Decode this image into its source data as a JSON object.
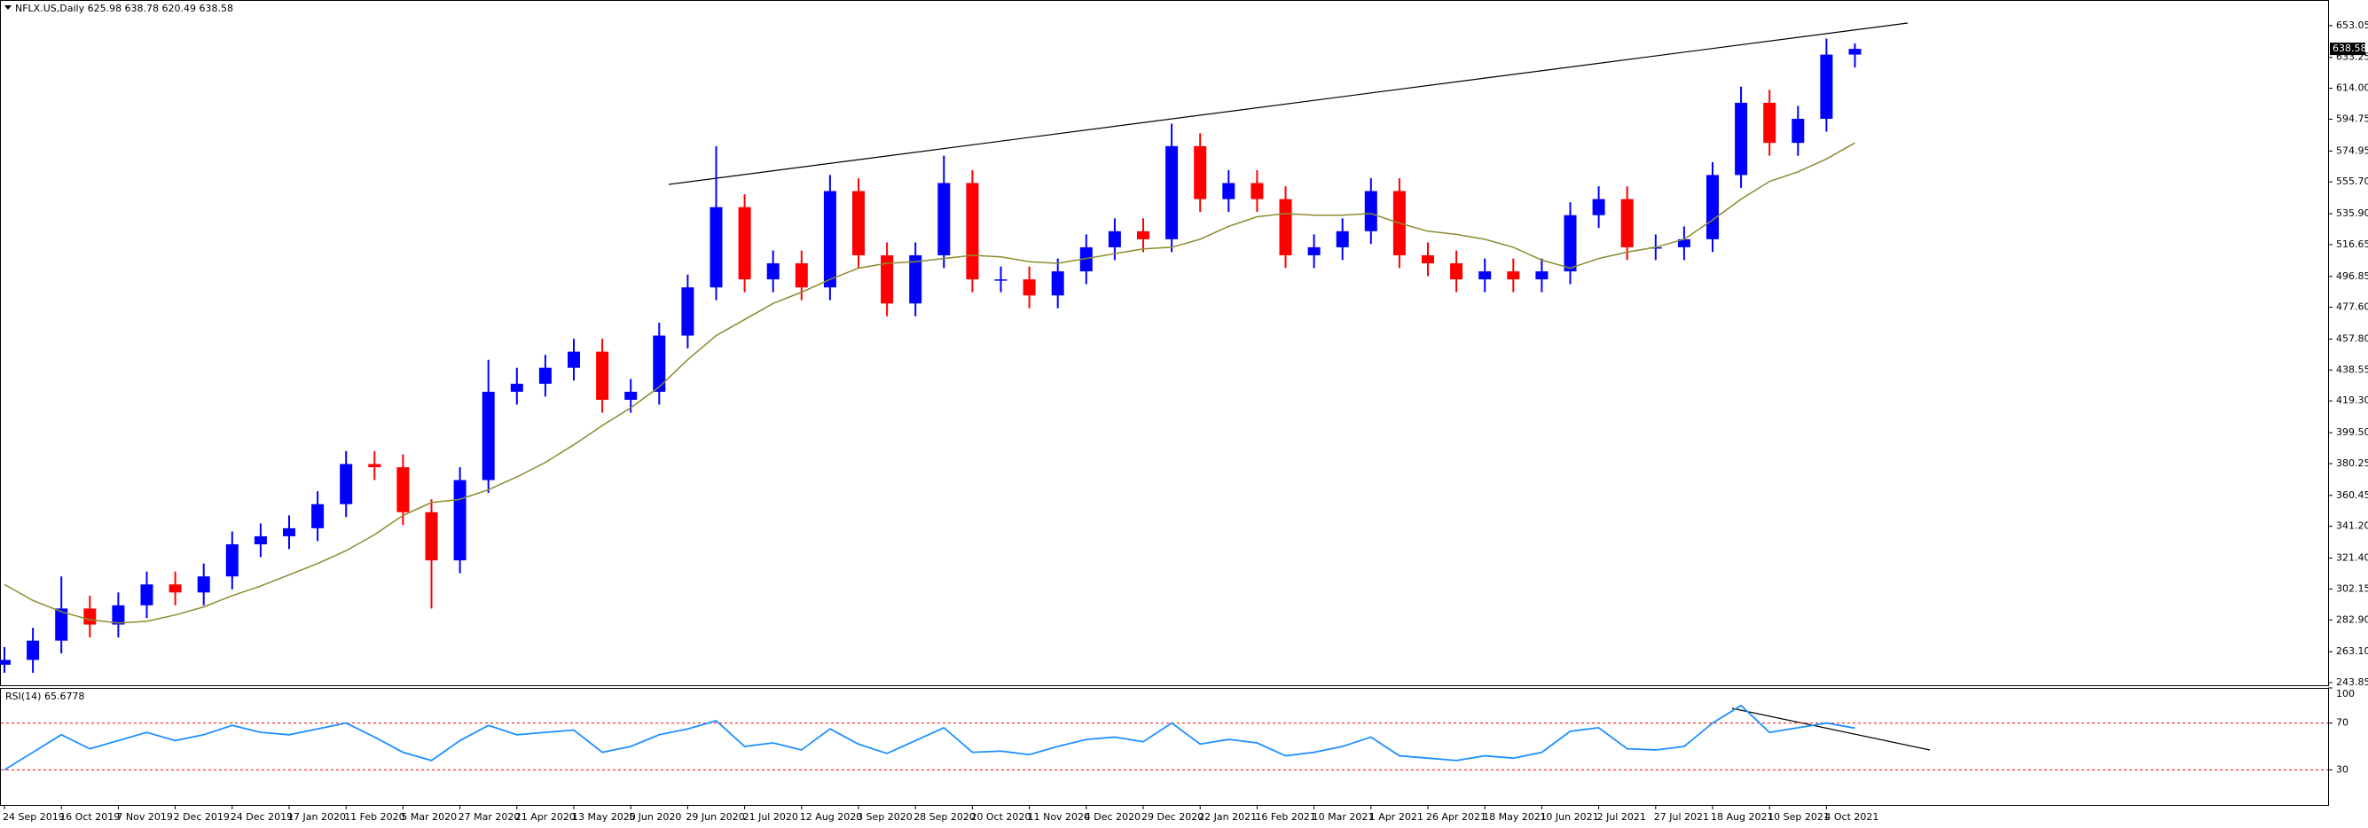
{
  "chart_data": [
    {
      "type": "candlestick",
      "title": "NFLX.US,Daily  625.98 638.78 620.49 638.58",
      "categories": [
        "24 Sep 2019",
        null,
        "16 Oct 2019",
        null,
        "7 Nov 2019",
        null,
        "2 Dec 2019",
        null,
        "24 Dec 2019",
        null,
        "17 Jan 2020",
        null,
        "11 Feb 2020",
        null,
        "5 Mar 2020",
        null,
        "27 Mar 2020",
        null,
        "21 Apr 2020",
        null,
        "13 May 2020",
        null,
        "5 Jun 2020",
        null,
        "29 Jun 2020",
        null,
        "21 Jul 2020",
        null,
        "12 Aug 2020",
        null,
        "3 Sep 2020",
        null,
        "28 Sep 2020",
        null,
        "20 Oct 2020",
        null,
        "11 Nov 2020",
        null,
        "4 Dec 2020",
        null,
        "29 Dec 2020",
        null,
        "22 Jan 2021",
        null,
        "16 Feb 2021",
        null,
        "10 Mar 2021",
        null,
        "1 Apr 2021",
        null,
        "26 Apr 2021",
        null,
        "18 May 2021",
        null,
        "10 Jun 2021",
        null,
        "2 Jul 2021",
        null,
        "27 Jul 2021",
        null,
        "18 Aug 2021",
        null,
        "10 Sep 2021",
        null,
        "4 Oct 2021",
        null
      ],
      "open": [
        255,
        258,
        270,
        290,
        280,
        292,
        305,
        300,
        310,
        330,
        335,
        340,
        355,
        380,
        378,
        350,
        320,
        370,
        425,
        430,
        440,
        450,
        420,
        425,
        460,
        490,
        540,
        495,
        505,
        490,
        550,
        510,
        480,
        510,
        555,
        495,
        495,
        485,
        500,
        515,
        525,
        520,
        578,
        545,
        555,
        545,
        510,
        515,
        525,
        550,
        510,
        505,
        495,
        500,
        495,
        500,
        535,
        545,
        515,
        515,
        520,
        560,
        605,
        580,
        595,
        635
      ],
      "high": [
        266,
        278,
        310,
        298,
        300,
        313,
        313,
        318,
        338,
        343,
        348,
        363,
        388,
        388,
        386,
        358,
        378,
        445,
        440,
        448,
        458,
        458,
        433,
        468,
        498,
        578,
        548,
        513,
        513,
        560,
        558,
        518,
        518,
        572,
        563,
        503,
        503,
        508,
        523,
        533,
        533,
        592,
        586,
        563,
        563,
        553,
        523,
        533,
        558,
        558,
        518,
        513,
        508,
        508,
        508,
        543,
        553,
        553,
        523,
        528,
        568,
        615,
        613,
        603,
        645,
        642
      ],
      "low": [
        250,
        250,
        262,
        272,
        272,
        284,
        292,
        292,
        302,
        322,
        327,
        332,
        347,
        370,
        342,
        290,
        312,
        362,
        417,
        422,
        432,
        412,
        412,
        417,
        452,
        482,
        487,
        487,
        482,
        482,
        502,
        472,
        472,
        502,
        487,
        487,
        477,
        477,
        492,
        507,
        512,
        512,
        537,
        537,
        537,
        502,
        502,
        507,
        517,
        502,
        497,
        487,
        487,
        487,
        487,
        492,
        527,
        507,
        507,
        507,
        512,
        552,
        572,
        572,
        587,
        627
      ],
      "close": [
        258,
        270,
        290,
        280,
        292,
        305,
        300,
        310,
        330,
        335,
        340,
        355,
        380,
        378,
        350,
        320,
        370,
        425,
        430,
        440,
        450,
        420,
        425,
        460,
        490,
        540,
        495,
        505,
        490,
        550,
        510,
        480,
        510,
        555,
        495,
        495,
        485,
        500,
        515,
        525,
        520,
        578,
        545,
        555,
        545,
        510,
        515,
        525,
        550,
        510,
        505,
        495,
        500,
        495,
        500,
        535,
        545,
        515,
        515,
        520,
        560,
        605,
        580,
        595,
        635,
        638.58
      ],
      "up_color": "#0000ff",
      "down_color": "#ff0000",
      "overlay": {
        "color": "#8b8b2e",
        "values": [
          305,
          295,
          288,
          283,
          281,
          282,
          286,
          291,
          298,
          304,
          311,
          318,
          326,
          336,
          348,
          356,
          358,
          364,
          372,
          381,
          392,
          404,
          415,
          428,
          445,
          460,
          470,
          480,
          487,
          495,
          502,
          505,
          506,
          508,
          510,
          509,
          506,
          505,
          508,
          511,
          514,
          515,
          520,
          528,
          534,
          536,
          535,
          535,
          536,
          530,
          525,
          523,
          520,
          515,
          507,
          502,
          508,
          512,
          515,
          520,
          532,
          545,
          556,
          562,
          570,
          580
        ]
      },
      "ylim": [
        242.2,
        669.0
      ],
      "yticks": [
        653.05,
        633.25,
        {
          "value": 614,
          "label": "614.00"
        },
        594.75,
        574.95,
        {
          "value": 555.7,
          "label": "555.70"
        },
        {
          "value": 535.9,
          "label": "535.90"
        },
        516.65,
        496.85,
        {
          "value": 477.6,
          "label": "477.60"
        },
        {
          "value": 457.8,
          "label": "457.80"
        },
        438.55,
        {
          "value": 419.3,
          "label": "419.30"
        },
        {
          "value": 399.5,
          "label": "399.50"
        },
        380.25,
        360.45,
        {
          "value": 341.2,
          "label": "341.20"
        },
        {
          "value": 321.4,
          "label": "321.40"
        },
        302.15,
        {
          "value": 282.9,
          "label": "282.90"
        },
        {
          "value": 263.1,
          "label": "263.10"
        },
        243.85
      ]
    },
    {
      "type": "line",
      "title": "RSI(14) 65.6778",
      "color": "#1e90ff",
      "values": [
        30,
        45,
        60,
        48,
        55,
        62,
        55,
        60,
        68,
        62,
        60,
        65,
        70,
        58,
        45,
        38,
        55,
        68,
        60,
        62,
        64,
        45,
        50,
        60,
        65,
        72,
        50,
        53,
        47,
        65,
        52,
        44,
        55,
        66,
        45,
        46,
        43,
        50,
        56,
        58,
        54,
        70,
        52,
        56,
        53,
        42,
        45,
        50,
        58,
        42,
        40,
        38,
        42,
        40,
        45,
        63,
        66,
        48,
        47,
        50,
        70,
        85,
        62,
        66,
        70,
        65.68
      ],
      "ylim": [
        0,
        100
      ],
      "yticks": [
        100,
        70,
        30
      ],
      "levels": [
        70,
        30
      ],
      "level_color": "#ff0000"
    }
  ]
}
